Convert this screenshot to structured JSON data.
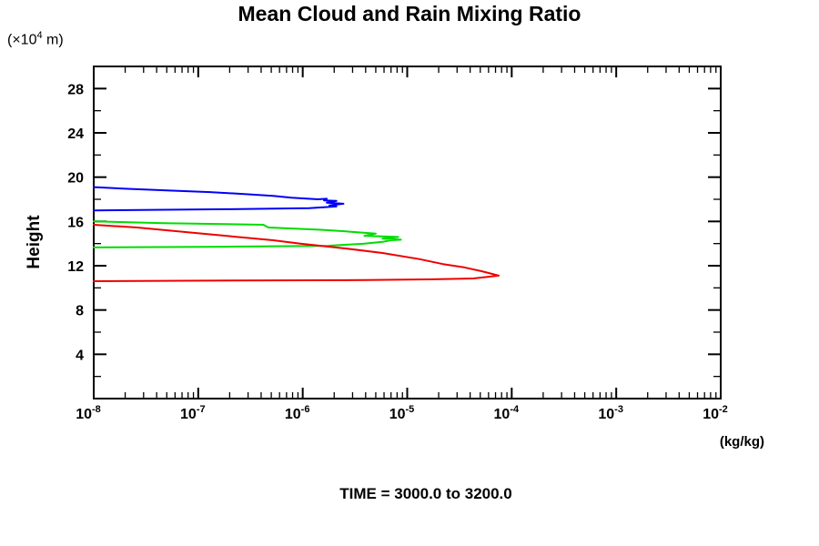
{
  "title": "Mean Cloud and Rain Mixing Ratio",
  "y_axis": {
    "unit_prefix": "(×10",
    "unit_exp": "4",
    "unit_suffix": " m)",
    "label": "Height"
  },
  "x_axis": {
    "tick_base": "10",
    "unit_label": "(kg/kg)"
  },
  "footer": "TIME = 3000.0 to 3200.0",
  "chart_data": {
    "type": "line",
    "title": "Mean Cloud and Rain Mixing Ratio",
    "xlabel": "(kg/kg)",
    "ylabel": "Height",
    "y_unit": "(x10^4 m)",
    "x_scale": "log10",
    "xlim": [
      1e-08,
      0.01
    ],
    "ylim": [
      0,
      30
    ],
    "x_tick_exponents": [
      -8,
      -7,
      -6,
      -5,
      -4,
      -3,
      -2
    ],
    "y_major_ticks": [
      4,
      8,
      12,
      16,
      20,
      24,
      28
    ],
    "y_minor_ticks": [
      2,
      6,
      10,
      14,
      18,
      22,
      26
    ],
    "grid": false,
    "legend": "none",
    "annotation": "TIME = 3000.0 to 3200.0",
    "colors": {
      "blue": "#0000f5",
      "green": "#00dc00",
      "red": "#ee0000"
    },
    "series": [
      {
        "name": "blue-profile",
        "color": "#0000f5",
        "points": [
          [
            1e-08,
            19.1
          ],
          [
            2e-08,
            18.95
          ],
          [
            5e-08,
            18.8
          ],
          [
            1.3e-07,
            18.65
          ],
          [
            3e-07,
            18.45
          ],
          [
            5.2e-07,
            18.3
          ],
          [
            7.8e-07,
            18.15
          ],
          [
            1.4e-06,
            18.0
          ],
          [
            1.7e-06,
            18.05
          ],
          [
            1.6e-06,
            17.9
          ],
          [
            2.1e-06,
            17.85
          ],
          [
            1.7e-06,
            17.7
          ],
          [
            2.45e-06,
            17.6
          ],
          [
            1.8e-06,
            17.45
          ],
          [
            2.1e-06,
            17.35
          ],
          [
            1.15e-06,
            17.2
          ],
          [
            1.9e-07,
            17.1
          ],
          [
            1e-08,
            17.0
          ]
        ]
      },
      {
        "name": "green-profile",
        "color": "#00dc00",
        "points": [
          [
            1e-08,
            16.0
          ],
          [
            4.7e-08,
            15.85
          ],
          [
            4.2e-07,
            15.7
          ],
          [
            4.7e-07,
            15.45
          ],
          [
            1.5e-06,
            15.25
          ],
          [
            2.6e-06,
            15.1
          ],
          [
            5e-06,
            14.9
          ],
          [
            3.9e-06,
            14.7
          ],
          [
            8.2e-06,
            14.6
          ],
          [
            5.8e-06,
            14.45
          ],
          [
            8.7e-06,
            14.35
          ],
          [
            7e-06,
            14.3
          ],
          [
            5.8e-06,
            14.15
          ],
          [
            3.9e-06,
            14.0
          ],
          [
            1.75e-06,
            13.8
          ],
          [
            1.9e-07,
            13.72
          ],
          [
            1e-08,
            13.65
          ]
        ]
      },
      {
        "name": "red-profile",
        "color": "#ee0000",
        "points": [
          [
            1e-08,
            15.7
          ],
          [
            2.6e-08,
            15.45
          ],
          [
            1.4e-07,
            14.8
          ],
          [
            5.2e-07,
            14.3
          ],
          [
            9.5e-07,
            14.0
          ],
          [
            2.6e-06,
            13.55
          ],
          [
            5.8e-06,
            13.15
          ],
          [
            1.3e-05,
            12.6
          ],
          [
            2.2e-05,
            12.15
          ],
          [
            3.5e-05,
            11.85
          ],
          [
            5.2e-05,
            11.5
          ],
          [
            7.5e-05,
            11.1
          ],
          [
            4.3e-05,
            10.85
          ],
          [
            1.6e-05,
            10.77
          ],
          [
            3.9e-06,
            10.7
          ],
          [
            5.2e-07,
            10.68
          ],
          [
            1e-08,
            10.6
          ]
        ]
      }
    ]
  }
}
